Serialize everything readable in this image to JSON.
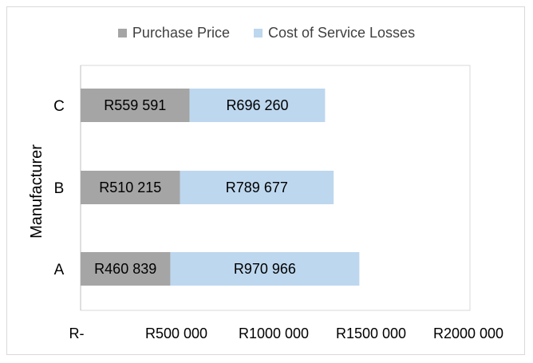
{
  "chart_data": {
    "type": "bar",
    "orientation": "horizontal",
    "stacked": true,
    "title": "",
    "xlabel": "",
    "ylabel": "Manufacturer",
    "categories": [
      "A",
      "B",
      "C"
    ],
    "series": [
      {
        "name": "Purchase Price",
        "color": "#a5a5a5",
        "values": [
          460839,
          510215,
          559591
        ],
        "labels": [
          "R460 839",
          "R510 215",
          "R559 591"
        ]
      },
      {
        "name": "Cost of Service Losses",
        "color": "#bdd7ee",
        "values": [
          970966,
          789677,
          696260
        ],
        "labels": [
          "R970 966",
          "R789 677",
          "R696 260"
        ]
      }
    ],
    "xlim": [
      0,
      2000000
    ],
    "xticks": [
      0,
      500000,
      1000000,
      1500000,
      2000000
    ],
    "xtick_labels": [
      "R-",
      "R500 000",
      "R1000 000",
      "R1500 000",
      "R2000 000"
    ],
    "legend_position": "top",
    "grid": false
  }
}
